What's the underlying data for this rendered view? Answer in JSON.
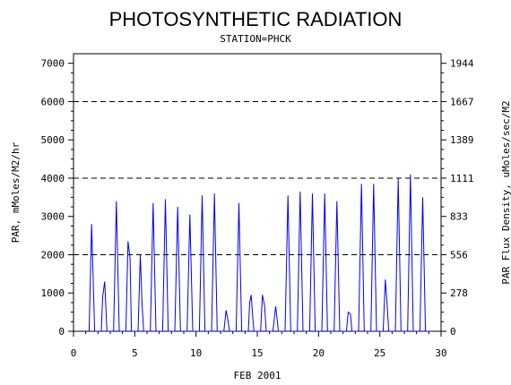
{
  "chart_data": {
    "type": "line",
    "title": "PHOTOSYNTHETIC RADIATION",
    "subtitle": "STATION=PHCK",
    "xlabel": "FEB 2001",
    "ylabel": "PAR, mMoles/M2/hr",
    "y2label": "PAR Flux Density, uMoles/sec/M2",
    "xlim": [
      0,
      30
    ],
    "ylim": [
      0,
      7250
    ],
    "x_ticks": [
      0,
      5,
      10,
      15,
      20,
      25,
      30
    ],
    "y_ticks": [
      0,
      1000,
      2000,
      3000,
      4000,
      5000,
      6000,
      7000
    ],
    "y2_ticks": [
      "0",
      "278",
      "556",
      "833",
      "1111",
      "1389",
      "1667",
      "1944"
    ],
    "reference_lines": [
      2000,
      4000,
      6000
    ],
    "series_color": "#0000ff",
    "daily_peaks": [
      {
        "day": 1,
        "peaks": [
          [
            0.48,
            2800
          ]
        ]
      },
      {
        "day": 2,
        "peaks": [
          [
            0.38,
            900
          ],
          [
            0.55,
            1300
          ]
        ]
      },
      {
        "day": 3,
        "peaks": [
          [
            0.5,
            3400
          ]
        ]
      },
      {
        "day": 4,
        "peaks": [
          [
            0.45,
            2350
          ],
          [
            0.62,
            1900
          ]
        ]
      },
      {
        "day": 5,
        "peaks": [
          [
            0.45,
            2000
          ],
          [
            0.6,
            700
          ]
        ]
      },
      {
        "day": 6,
        "peaks": [
          [
            0.5,
            3350
          ]
        ]
      },
      {
        "day": 7,
        "peaks": [
          [
            0.5,
            3450
          ]
        ]
      },
      {
        "day": 8,
        "peaks": [
          [
            0.5,
            3250
          ]
        ]
      },
      {
        "day": 9,
        "peaks": [
          [
            0.5,
            3050
          ]
        ]
      },
      {
        "day": 10,
        "peaks": [
          [
            0.5,
            3550
          ]
        ]
      },
      {
        "day": 11,
        "peaks": [
          [
            0.5,
            3600
          ]
        ]
      },
      {
        "day": 12,
        "peaks": [
          [
            0.45,
            550
          ],
          [
            0.6,
            300
          ]
        ]
      },
      {
        "day": 13,
        "peaks": [
          [
            0.5,
            3350
          ]
        ]
      },
      {
        "day": 14,
        "peaks": [
          [
            0.38,
            750
          ],
          [
            0.5,
            950
          ],
          [
            0.62,
            400
          ]
        ]
      },
      {
        "day": 15,
        "peaks": [
          [
            0.42,
            950
          ],
          [
            0.6,
            650
          ]
        ]
      },
      {
        "day": 16,
        "peaks": [
          [
            0.5,
            650
          ]
        ]
      },
      {
        "day": 17,
        "peaks": [
          [
            0.5,
            3550
          ]
        ]
      },
      {
        "day": 18,
        "peaks": [
          [
            0.5,
            3650
          ]
        ]
      },
      {
        "day": 19,
        "peaks": [
          [
            0.5,
            3600
          ]
        ]
      },
      {
        "day": 20,
        "peaks": [
          [
            0.5,
            3600
          ]
        ]
      },
      {
        "day": 21,
        "peaks": [
          [
            0.5,
            3400
          ]
        ]
      },
      {
        "day": 22,
        "peaks": [
          [
            0.42,
            500
          ],
          [
            0.6,
            450
          ]
        ]
      },
      {
        "day": 23,
        "peaks": [
          [
            0.5,
            3850
          ]
        ]
      },
      {
        "day": 24,
        "peaks": [
          [
            0.5,
            3850
          ]
        ]
      },
      {
        "day": 25,
        "peaks": [
          [
            0.45,
            1350
          ],
          [
            0.62,
            600
          ]
        ]
      },
      {
        "day": 26,
        "peaks": [
          [
            0.5,
            4000
          ]
        ]
      },
      {
        "day": 27,
        "peaks": [
          [
            0.5,
            4100
          ]
        ]
      },
      {
        "day": 28,
        "peaks": [
          [
            0.5,
            3500
          ]
        ]
      }
    ]
  }
}
